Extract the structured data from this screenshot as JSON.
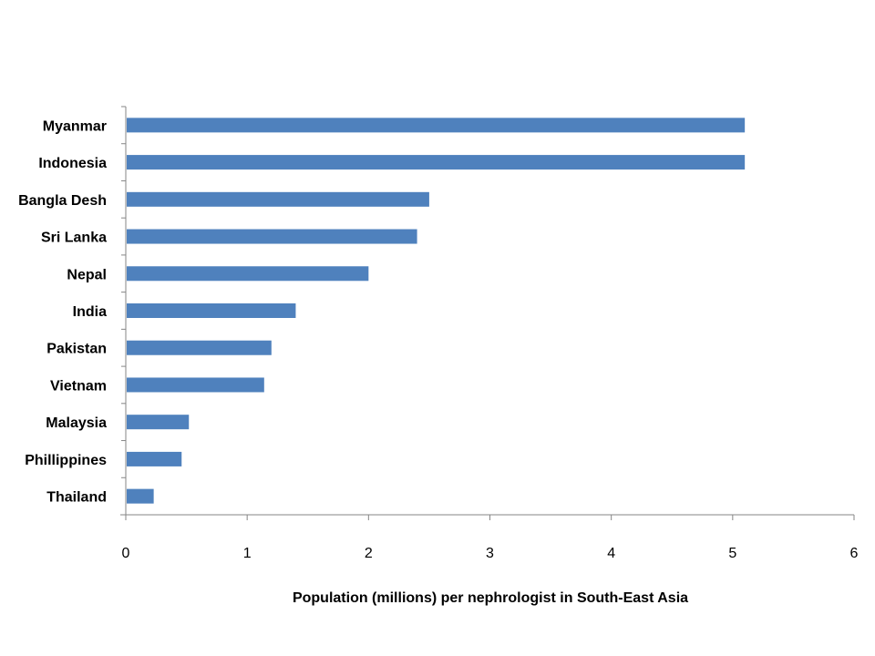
{
  "chart_data": {
    "type": "bar",
    "orientation": "horizontal",
    "categories": [
      "Myanmar",
      "Indonesia",
      "Bangla Desh",
      "Sri Lanka",
      "Nepal",
      "India",
      "Pakistan",
      "Vietnam",
      "Malaysia",
      "Phillippines",
      "Thailand"
    ],
    "values": [
      5.1,
      5.1,
      2.5,
      2.4,
      2.0,
      1.4,
      1.2,
      1.14,
      0.52,
      0.46,
      0.23
    ],
    "title": "",
    "xlabel": "Population (millions) per nephrologist in South-East Asia",
    "ylabel": "",
    "xlim": [
      0,
      6
    ],
    "xticks": [
      "0",
      "1",
      "2",
      "3",
      "4",
      "5",
      "6"
    ],
    "grid": false,
    "legend": "none",
    "bar_color": "#4f81bd",
    "axis_color": "#868686"
  }
}
